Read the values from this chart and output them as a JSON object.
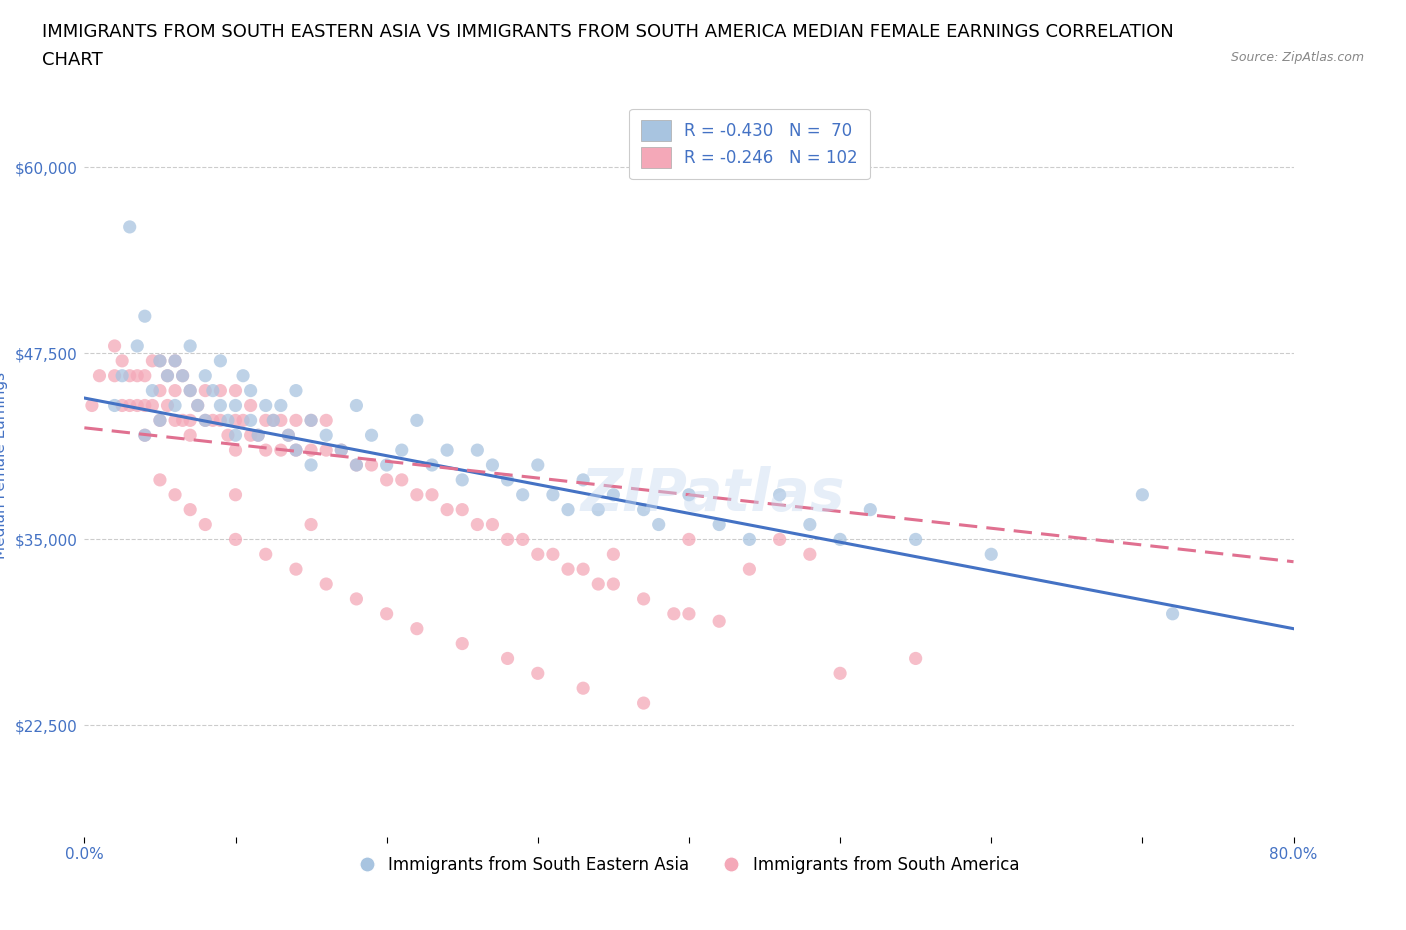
{
  "title_line1": "IMMIGRANTS FROM SOUTH EASTERN ASIA VS IMMIGRANTS FROM SOUTH AMERICA MEDIAN FEMALE EARNINGS CORRELATION",
  "title_line2": "CHART",
  "source_text": "Source: ZipAtlas.com",
  "ylabel": "Median Female Earnings",
  "xlim": [
    0.0,
    0.8
  ],
  "ylim": [
    15000,
    65000
  ],
  "yticks": [
    22500,
    35000,
    47500,
    60000
  ],
  "ytick_labels": [
    "$22,500",
    "$35,000",
    "$47,500",
    "$60,000"
  ],
  "xticks": [
    0.0,
    0.1,
    0.2,
    0.3,
    0.4,
    0.5,
    0.6,
    0.7,
    0.8
  ],
  "xtick_labels": [
    "0.0%",
    "",
    "",
    "",
    "",
    "",
    "",
    "",
    "80.0%"
  ],
  "legend_entries": [
    {
      "label": "Immigrants from South Eastern Asia",
      "color": "#a8c4e0",
      "R": -0.43,
      "N": 70
    },
    {
      "label": "Immigrants from South America",
      "color": "#f4a8b8",
      "R": -0.246,
      "N": 102
    }
  ],
  "blue_line_x0": 0.0,
  "blue_line_y0": 44500,
  "blue_line_x1": 0.8,
  "blue_line_y1": 29000,
  "pink_line_x0": 0.0,
  "pink_line_y0": 42500,
  "pink_line_x1": 0.8,
  "pink_line_y1": 33500,
  "blue_scatter_x": [
    0.02,
    0.025,
    0.03,
    0.035,
    0.04,
    0.04,
    0.045,
    0.05,
    0.05,
    0.055,
    0.06,
    0.06,
    0.065,
    0.07,
    0.07,
    0.075,
    0.08,
    0.08,
    0.085,
    0.09,
    0.09,
    0.095,
    0.1,
    0.1,
    0.105,
    0.11,
    0.11,
    0.115,
    0.12,
    0.125,
    0.13,
    0.135,
    0.14,
    0.14,
    0.15,
    0.15,
    0.16,
    0.17,
    0.18,
    0.18,
    0.19,
    0.2,
    0.21,
    0.22,
    0.23,
    0.24,
    0.25,
    0.26,
    0.27,
    0.28,
    0.29,
    0.3,
    0.31,
    0.32,
    0.33,
    0.34,
    0.35,
    0.37,
    0.38,
    0.4,
    0.42,
    0.44,
    0.46,
    0.48,
    0.5,
    0.52,
    0.55,
    0.6,
    0.7,
    0.72
  ],
  "blue_scatter_y": [
    44000,
    46000,
    56000,
    48000,
    50000,
    42000,
    45000,
    43000,
    47000,
    46000,
    44000,
    47000,
    46000,
    45000,
    48000,
    44000,
    43000,
    46000,
    45000,
    44000,
    47000,
    43000,
    44000,
    42000,
    46000,
    43000,
    45000,
    42000,
    44000,
    43000,
    44000,
    42000,
    45000,
    41000,
    43000,
    40000,
    42000,
    41000,
    44000,
    40000,
    42000,
    40000,
    41000,
    43000,
    40000,
    41000,
    39000,
    41000,
    40000,
    39000,
    38000,
    40000,
    38000,
    37000,
    39000,
    37000,
    38000,
    37000,
    36000,
    38000,
    36000,
    35000,
    38000,
    36000,
    35000,
    37000,
    35000,
    34000,
    38000,
    30000
  ],
  "pink_scatter_x": [
    0.005,
    0.01,
    0.02,
    0.02,
    0.025,
    0.025,
    0.03,
    0.03,
    0.035,
    0.035,
    0.04,
    0.04,
    0.04,
    0.045,
    0.045,
    0.05,
    0.05,
    0.05,
    0.055,
    0.055,
    0.06,
    0.06,
    0.06,
    0.065,
    0.065,
    0.07,
    0.07,
    0.07,
    0.075,
    0.08,
    0.08,
    0.085,
    0.09,
    0.09,
    0.095,
    0.1,
    0.1,
    0.1,
    0.105,
    0.11,
    0.11,
    0.115,
    0.12,
    0.12,
    0.125,
    0.13,
    0.13,
    0.135,
    0.14,
    0.14,
    0.15,
    0.15,
    0.16,
    0.16,
    0.17,
    0.18,
    0.19,
    0.2,
    0.21,
    0.22,
    0.23,
    0.24,
    0.25,
    0.26,
    0.27,
    0.28,
    0.29,
    0.3,
    0.31,
    0.32,
    0.33,
    0.34,
    0.35,
    0.37,
    0.39,
    0.4,
    0.42,
    0.44,
    0.46,
    0.48,
    0.05,
    0.06,
    0.07,
    0.08,
    0.1,
    0.12,
    0.14,
    0.16,
    0.18,
    0.2,
    0.22,
    0.25,
    0.28,
    0.3,
    0.33,
    0.37,
    0.5,
    0.55,
    0.4,
    0.35,
    0.1,
    0.15
  ],
  "pink_scatter_y": [
    44000,
    46000,
    46000,
    48000,
    44000,
    47000,
    44000,
    46000,
    44000,
    46000,
    44000,
    46000,
    42000,
    44000,
    47000,
    43000,
    45000,
    47000,
    44000,
    46000,
    43000,
    45000,
    47000,
    43000,
    46000,
    43000,
    45000,
    42000,
    44000,
    43000,
    45000,
    43000,
    43000,
    45000,
    42000,
    43000,
    41000,
    45000,
    43000,
    42000,
    44000,
    42000,
    43000,
    41000,
    43000,
    41000,
    43000,
    42000,
    41000,
    43000,
    41000,
    43000,
    41000,
    43000,
    41000,
    40000,
    40000,
    39000,
    39000,
    38000,
    38000,
    37000,
    37000,
    36000,
    36000,
    35000,
    35000,
    34000,
    34000,
    33000,
    33000,
    32000,
    32000,
    31000,
    30000,
    30000,
    29500,
    33000,
    35000,
    34000,
    39000,
    38000,
    37000,
    36000,
    35000,
    34000,
    33000,
    32000,
    31000,
    30000,
    29000,
    28000,
    27000,
    26000,
    25000,
    24000,
    26000,
    27000,
    35000,
    34000,
    38000,
    36000
  ],
  "line_color_blue": "#4472c4",
  "line_color_pink": "#e07090",
  "scatter_color_blue": "#a8c4e0",
  "scatter_color_pink": "#f4a8b8",
  "scatter_alpha": 0.75,
  "scatter_size": 90,
  "grid_color": "#cccccc",
  "axis_label_color": "#4472c4",
  "tick_color": "#4472c4",
  "legend_R_color": "#4472c4",
  "watermark_text": "ZIPatlas",
  "background_color": "#ffffff",
  "title_fontsize": 13,
  "axis_fontsize": 11,
  "tick_fontsize": 11,
  "legend_fontsize": 12
}
